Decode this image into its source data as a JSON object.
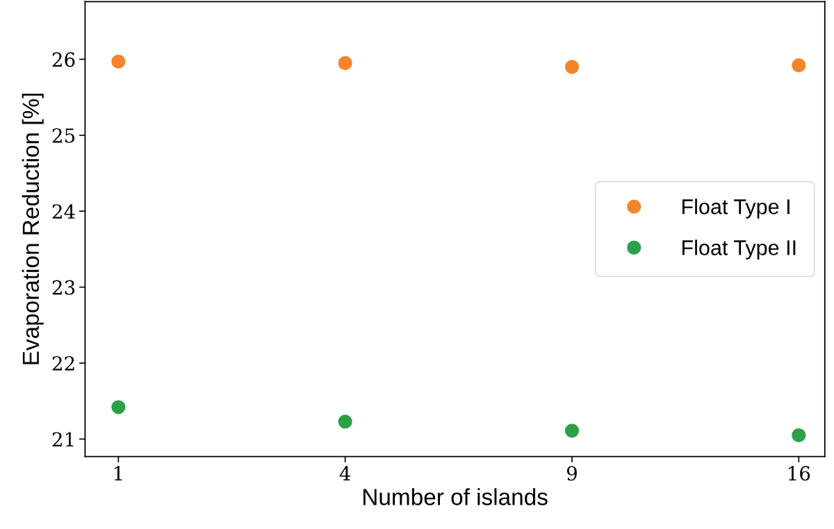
{
  "chart_data": {
    "type": "scatter",
    "xlabel": "Number of islands",
    "ylabel": "Evaporation Reduction [%]",
    "categories": [
      "1",
      "4",
      "9",
      "16"
    ],
    "series": [
      {
        "name": "Float Type I",
        "color": "#f5842a",
        "values": [
          25.97,
          25.95,
          25.9,
          25.92
        ]
      },
      {
        "name": "Float Type II",
        "color": "#2ca048",
        "values": [
          21.42,
          21.23,
          21.11,
          21.05
        ]
      }
    ],
    "ylim": [
      20.77,
      26.76
    ],
    "yticks": [
      21,
      22,
      23,
      24,
      25,
      26
    ],
    "grid": false,
    "legend": "right",
    "marker": "circle"
  }
}
